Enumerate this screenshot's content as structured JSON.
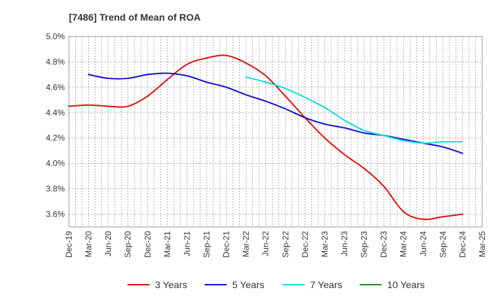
{
  "chart_data": {
    "type": "line",
    "title": "[7486]  Trend of Mean of ROA",
    "xlabel": "",
    "ylabel": "",
    "ylim": [
      3.5,
      5.0
    ],
    "yticks": [
      "3.6%",
      "3.8%",
      "4.0%",
      "4.2%",
      "4.4%",
      "4.6%",
      "4.8%",
      "5.0%"
    ],
    "ytick_values": [
      3.6,
      3.8,
      4.0,
      4.2,
      4.4,
      4.6,
      4.8,
      5.0
    ],
    "categories": [
      "Dec-19",
      "Mar-20",
      "Jun-20",
      "Sep-20",
      "Dec-20",
      "Mar-21",
      "Jun-21",
      "Sep-21",
      "Dec-21",
      "Mar-22",
      "Jun-22",
      "Sep-22",
      "Dec-22",
      "Mar-23",
      "Jun-23",
      "Sep-23",
      "Dec-23",
      "Mar-24",
      "Jun-24",
      "Sep-24",
      "Dec-24",
      "Mar-25"
    ],
    "grid": true,
    "legend_position": "bottom",
    "series": [
      {
        "name": "3 Years",
        "color": "#dd1111",
        "values": [
          4.45,
          4.46,
          4.45,
          4.45,
          4.53,
          4.66,
          4.78,
          4.83,
          4.85,
          4.79,
          4.69,
          4.53,
          4.36,
          4.2,
          4.07,
          3.96,
          3.82,
          3.62,
          3.56,
          3.58,
          3.6,
          null
        ]
      },
      {
        "name": "5 Years",
        "color": "#1111cc",
        "values": [
          null,
          4.7,
          4.67,
          4.67,
          4.7,
          4.71,
          4.69,
          4.64,
          4.6,
          4.54,
          4.49,
          4.43,
          4.36,
          4.31,
          4.28,
          4.24,
          4.22,
          4.19,
          4.16,
          4.13,
          4.08,
          null
        ]
      },
      {
        "name": "7 Years",
        "color": "#11dddd",
        "values": [
          null,
          null,
          null,
          null,
          null,
          null,
          null,
          null,
          null,
          4.68,
          4.64,
          4.59,
          4.52,
          4.44,
          4.34,
          4.26,
          4.22,
          4.18,
          4.16,
          4.17,
          4.17,
          null
        ]
      },
      {
        "name": "10 Years",
        "color": "#228b22",
        "values": [
          null,
          null,
          null,
          null,
          null,
          null,
          null,
          null,
          null,
          null,
          null,
          null,
          null,
          null,
          null,
          null,
          null,
          null,
          null,
          null,
          null,
          null
        ]
      }
    ]
  }
}
